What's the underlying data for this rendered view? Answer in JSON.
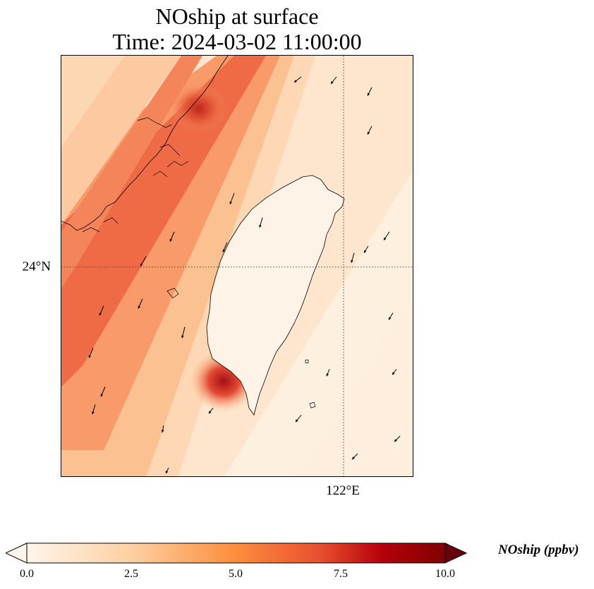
{
  "title": {
    "line1": "NOship at surface",
    "line2": "Time: 2024-03-02 11:00:00"
  },
  "map": {
    "lat_gridline": {
      "value": 24,
      "label": "24°N"
    },
    "lon_gridline": {
      "value": 122,
      "label": "122°E"
    },
    "field": "NOship",
    "features": [
      "coastline",
      "wind-vectors",
      "gridlines"
    ]
  },
  "colorbar": {
    "label": "NOship (ppbv)",
    "min": 0,
    "max": 10,
    "ticks": [
      {
        "value": 0,
        "label": "0.0"
      },
      {
        "value": 2.5,
        "label": "2.5"
      },
      {
        "value": 5,
        "label": "5.0"
      },
      {
        "value": 7.5,
        "label": "7.5"
      },
      {
        "value": 10,
        "label": "10.0"
      }
    ],
    "extend": "both",
    "colors": [
      "#fff5eb",
      "#fdd0a2",
      "#fd8d3c",
      "#d94801",
      "#a50f15",
      "#67000d"
    ]
  }
}
